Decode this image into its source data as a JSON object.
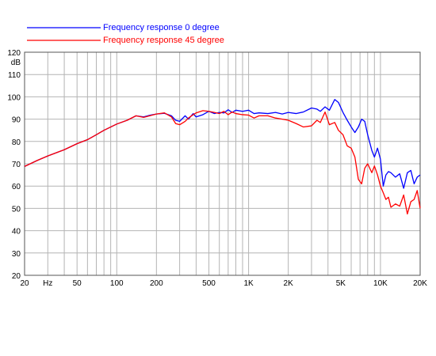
{
  "chart_data": {
    "type": "line",
    "title": "",
    "xlabel": "",
    "ylabel": "dB",
    "x_scale": "log",
    "xlim": [
      20,
      20000
    ],
    "ylim": [
      20,
      120
    ],
    "grid": true,
    "legend_position": "top-left",
    "y_ticks": [
      20,
      30,
      40,
      50,
      60,
      70,
      80,
      90,
      100,
      110,
      120
    ],
    "x_ticks": [
      {
        "value": 20,
        "label": "20"
      },
      {
        "value": 50,
        "label": "50"
      },
      {
        "value": 100,
        "label": "100"
      },
      {
        "value": 200,
        "label": "200"
      },
      {
        "value": 500,
        "label": "500"
      },
      {
        "value": 1000,
        "label": "1K"
      },
      {
        "value": 2000,
        "label": "2K"
      },
      {
        "value": 5000,
        "label": "5K"
      },
      {
        "value": 10000,
        "label": "10K"
      },
      {
        "value": 20000,
        "label": "20K"
      }
    ],
    "unit_label": "Hz",
    "series": [
      {
        "name": "Frequency response 0 degree",
        "color": "#0000ff",
        "points": [
          [
            20,
            68.8
          ],
          [
            25,
            71.5
          ],
          [
            30,
            73.5
          ],
          [
            40,
            76.3
          ],
          [
            50,
            79
          ],
          [
            60,
            80.8
          ],
          [
            70,
            83
          ],
          [
            80,
            85
          ],
          [
            100,
            87.8
          ],
          [
            120,
            89.5
          ],
          [
            140,
            91.5
          ],
          [
            160,
            91
          ],
          [
            180,
            91.8
          ],
          [
            200,
            92.3
          ],
          [
            230,
            92.6
          ],
          [
            260,
            91.5
          ],
          [
            280,
            89.5
          ],
          [
            300,
            89
          ],
          [
            330,
            91.5
          ],
          [
            350,
            90
          ],
          [
            380,
            92.5
          ],
          [
            400,
            91
          ],
          [
            450,
            92
          ],
          [
            500,
            93.5
          ],
          [
            550,
            92.5
          ],
          [
            600,
            93
          ],
          [
            650,
            92.8
          ],
          [
            700,
            94.2
          ],
          [
            750,
            93
          ],
          [
            800,
            94
          ],
          [
            900,
            93.5
          ],
          [
            1000,
            94
          ],
          [
            1100,
            92.5
          ],
          [
            1200,
            92.8
          ],
          [
            1400,
            92.5
          ],
          [
            1600,
            93
          ],
          [
            1800,
            92.3
          ],
          [
            2000,
            93
          ],
          [
            2300,
            92.5
          ],
          [
            2600,
            93.2
          ],
          [
            3000,
            95
          ],
          [
            3300,
            94.5
          ],
          [
            3500,
            93.5
          ],
          [
            3800,
            95.5
          ],
          [
            4100,
            94
          ],
          [
            4500,
            98.8
          ],
          [
            4800,
            97.5
          ],
          [
            5200,
            93
          ],
          [
            5600,
            89.5
          ],
          [
            6000,
            86.5
          ],
          [
            6400,
            84
          ],
          [
            6800,
            86.5
          ],
          [
            7200,
            90
          ],
          [
            7600,
            89
          ],
          [
            8000,
            83
          ],
          [
            8600,
            76
          ],
          [
            9000,
            73
          ],
          [
            9500,
            77
          ],
          [
            10000,
            72
          ],
          [
            10500,
            60
          ],
          [
            11000,
            65
          ],
          [
            11500,
            66.5
          ],
          [
            12000,
            66
          ],
          [
            13000,
            64
          ],
          [
            14000,
            65.5
          ],
          [
            15000,
            59
          ],
          [
            16000,
            66
          ],
          [
            17000,
            67
          ],
          [
            18000,
            61
          ],
          [
            19000,
            64
          ],
          [
            20000,
            65
          ]
        ]
      },
      {
        "name": "Frequency response 45 degree",
        "color": "#ff0000",
        "points": [
          [
            20,
            68.8
          ],
          [
            25,
            71.5
          ],
          [
            30,
            73.5
          ],
          [
            40,
            76.3
          ],
          [
            50,
            79
          ],
          [
            60,
            80.8
          ],
          [
            70,
            83
          ],
          [
            80,
            85
          ],
          [
            100,
            87.8
          ],
          [
            120,
            89.5
          ],
          [
            140,
            91.5
          ],
          [
            160,
            90.8
          ],
          [
            180,
            91.6
          ],
          [
            200,
            92.3
          ],
          [
            230,
            92.8
          ],
          [
            260,
            91
          ],
          [
            280,
            88
          ],
          [
            300,
            87.5
          ],
          [
            330,
            89
          ],
          [
            350,
            90.5
          ],
          [
            380,
            92
          ],
          [
            400,
            92.8
          ],
          [
            450,
            93.8
          ],
          [
            500,
            93.5
          ],
          [
            550,
            93
          ],
          [
            600,
            92.5
          ],
          [
            650,
            93.5
          ],
          [
            700,
            92
          ],
          [
            750,
            93.2
          ],
          [
            800,
            92.5
          ],
          [
            900,
            92
          ],
          [
            1000,
            91.8
          ],
          [
            1100,
            90.5
          ],
          [
            1200,
            91.5
          ],
          [
            1400,
            91.5
          ],
          [
            1600,
            90.5
          ],
          [
            1800,
            90
          ],
          [
            2000,
            89.5
          ],
          [
            2300,
            88
          ],
          [
            2600,
            86.5
          ],
          [
            3000,
            87
          ],
          [
            3300,
            89.5
          ],
          [
            3500,
            88.5
          ],
          [
            3800,
            93.2
          ],
          [
            4100,
            87.5
          ],
          [
            4500,
            88.5
          ],
          [
            4800,
            85
          ],
          [
            5200,
            83
          ],
          [
            5600,
            78
          ],
          [
            6000,
            77
          ],
          [
            6400,
            73
          ],
          [
            6800,
            63
          ],
          [
            7200,
            61
          ],
          [
            7600,
            68
          ],
          [
            8000,
            70
          ],
          [
            8600,
            66
          ],
          [
            9000,
            69
          ],
          [
            9500,
            65
          ],
          [
            10000,
            60
          ],
          [
            10500,
            57
          ],
          [
            11000,
            54
          ],
          [
            11500,
            55
          ],
          [
            12000,
            50.5
          ],
          [
            13000,
            52
          ],
          [
            14000,
            51
          ],
          [
            15000,
            56
          ],
          [
            16000,
            47.5
          ],
          [
            17000,
            53
          ],
          [
            18000,
            54
          ],
          [
            19000,
            58
          ],
          [
            20000,
            50
          ]
        ]
      }
    ]
  }
}
